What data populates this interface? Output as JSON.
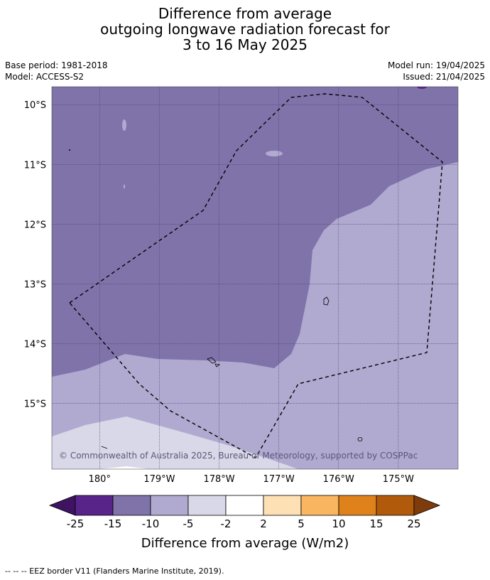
{
  "title": {
    "line1": "Difference from average",
    "line2": "outgoing longwave radiation forecast for",
    "line3": "3 to 16 May 2025"
  },
  "meta": {
    "base_period": "Base period: 1981-2018",
    "model": "Model: ACCESS-S2",
    "model_run": "Model run: 19/04/2025",
    "issued": "Issued: 21/04/2025"
  },
  "map": {
    "lat_range": [
      -16.1,
      -9.7
    ],
    "lon_range": [
      179.2,
      186.0
    ],
    "lat_ticks": [
      {
        "value": -10,
        "label": "10°S"
      },
      {
        "value": -11,
        "label": "11°S"
      },
      {
        "value": -12,
        "label": "12°S"
      },
      {
        "value": -13,
        "label": "13°S"
      },
      {
        "value": -14,
        "label": "14°S"
      },
      {
        "value": -15,
        "label": "15°S"
      }
    ],
    "lon_ticks": [
      {
        "value": 180,
        "label": "180°"
      },
      {
        "value": 181,
        "label": "179°W"
      },
      {
        "value": 182,
        "label": "178°W"
      },
      {
        "value": 183,
        "label": "177°W"
      },
      {
        "value": 184,
        "label": "176°W"
      },
      {
        "value": 185,
        "label": "175°W"
      }
    ],
    "copyright": "© Commonwealth of Australia 2025, Bureau of Meteorology, supported by COSPPac",
    "colors": {
      "band_-15_-10": "#7f73aa",
      "band_-10_-5": "#b0aad0",
      "band_-5_-2": "#d8d8e8",
      "grid": "#4a3f73",
      "eez": "#000000"
    }
  },
  "colorbar": {
    "title": "Difference from average (W/m2)",
    "bounds": [
      "-25",
      "-15",
      "-10",
      "-5",
      "-2",
      "2",
      "5",
      "10",
      "15",
      "25"
    ],
    "colors": [
      "#3d1362",
      "#58248a",
      "#7f73aa",
      "#b0aad0",
      "#d8d8e8",
      "#ffffff",
      "#fde0b4",
      "#fab560",
      "#e0821c",
      "#b25a0b",
      "#7e3b0c"
    ]
  },
  "footer": "--  --  -- EEZ border V11 (Flanders Marine Institute, 2019)."
}
